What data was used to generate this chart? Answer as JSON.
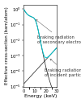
{
  "xlabel": "Energy (keV)",
  "ylabel": "Effective cross-section (barn/atom)",
  "xlim": [
    0,
    30
  ],
  "background_color": "#ffffff",
  "label_secondary_electrons": "Braking radiation\nof secondary electrons",
  "label_incident_particles": "Braking radiation\nof incident particles",
  "line_secondary_color": "#1a1a1a",
  "line_incident_color": "#1a1a1a",
  "line_sum_color": "#00c8d2",
  "annotation_fontsize": 3.8,
  "axis_fontsize": 4.5,
  "tick_fontsize": 3.8,
  "ylabel_fontsize": 4.0
}
